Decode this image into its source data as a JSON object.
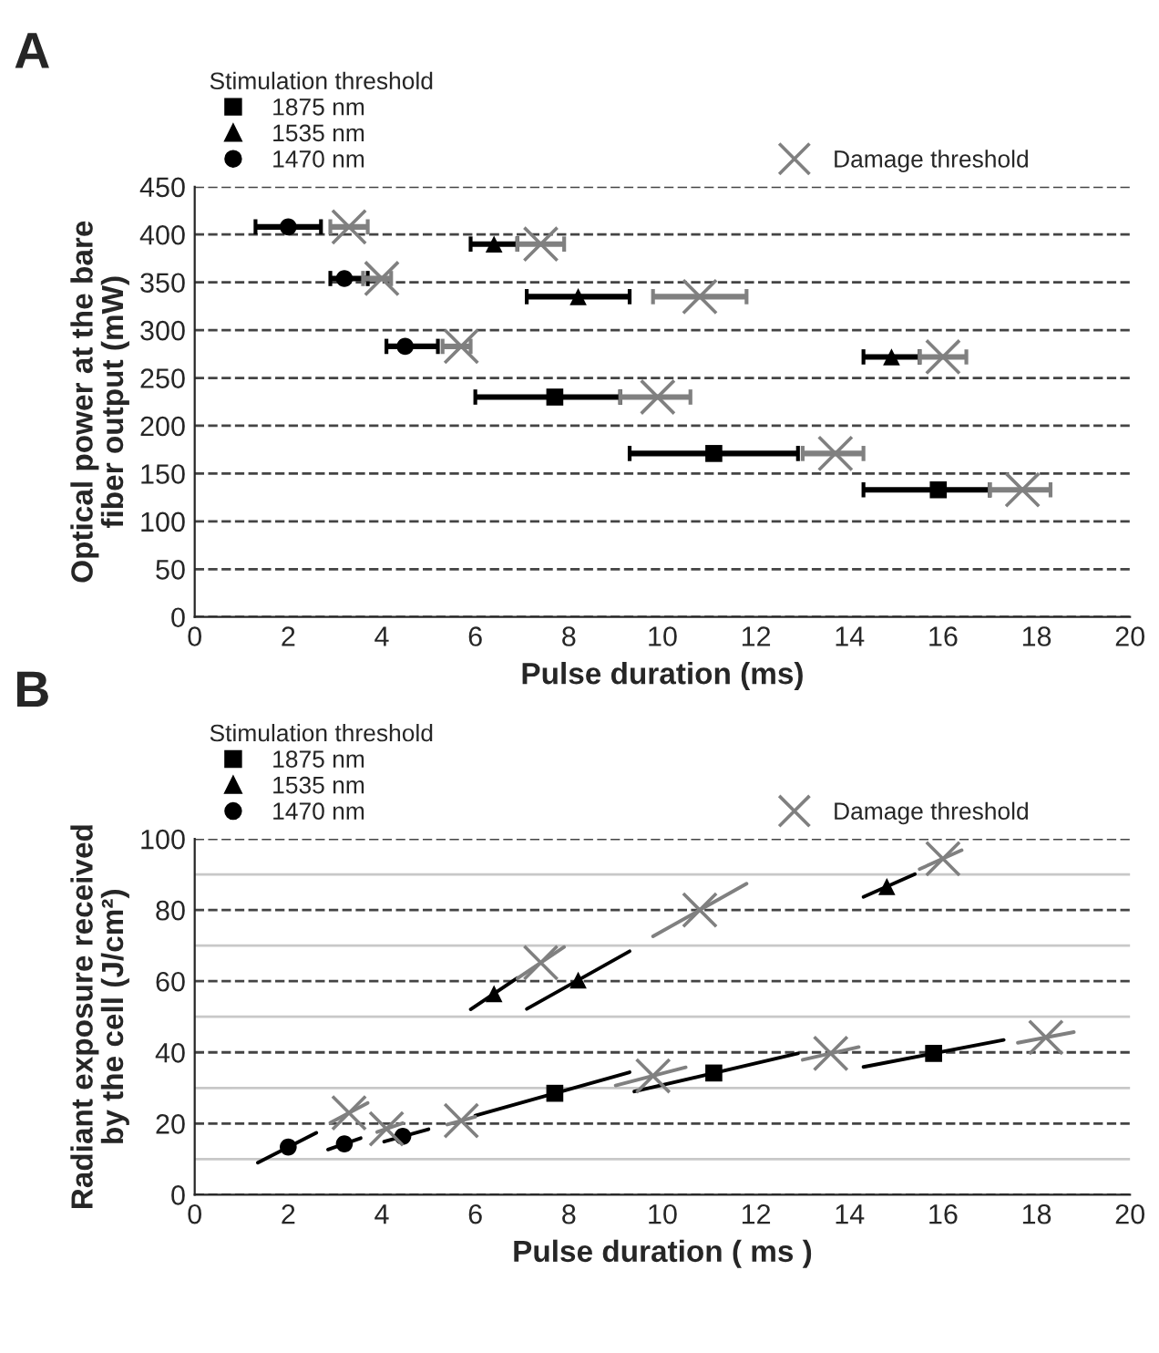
{
  "chart_data": [
    {
      "type": "scatter",
      "annotations": [
        "A"
      ],
      "xlabel": "Pulse duration (ms)",
      "ylabel": "Optical power at the bare\nfiber output (mW)",
      "legend_title": "Stimulation threshold",
      "legend": "top",
      "grid": "y",
      "xlim": [
        0,
        20
      ],
      "xticks": [
        0,
        2,
        4,
        6,
        8,
        10,
        12,
        14,
        16,
        18,
        20
      ],
      "ylim": [
        0,
        450
      ],
      "yticks": [
        0,
        50,
        100,
        150,
        200,
        250,
        300,
        350,
        400,
        450
      ],
      "series": [
        {
          "name": "1875 nm",
          "color": "#000000",
          "marker": "square",
          "x": [
            7.7,
            11.1,
            15.9
          ],
          "values": [
            230,
            171,
            133
          ],
          "xerrors": [
            [
              6.0,
              9.1
            ],
            [
              9.3,
              12.9
            ],
            [
              14.3,
              17.0
            ]
          ]
        },
        {
          "name": "1535 nm",
          "color": "#000000",
          "marker": "triangle",
          "x": [
            6.4,
            8.2,
            14.9
          ],
          "values": [
            390,
            335,
            272
          ],
          "xerrors": [
            [
              5.9,
              6.9
            ],
            [
              7.1,
              9.3
            ],
            [
              14.3,
              15.5
            ]
          ]
        },
        {
          "name": "1470 nm",
          "color": "#000000",
          "marker": "circle",
          "x": [
            2.0,
            3.2,
            4.5
          ],
          "values": [
            408,
            354,
            283
          ],
          "xerrors": [
            [
              1.3,
              2.7
            ],
            [
              2.9,
              3.7
            ],
            [
              4.1,
              5.2
            ]
          ]
        },
        {
          "name": "Damage threshold",
          "color": "#808080",
          "marker": "cross",
          "x": [
            3.3,
            4.0,
            5.7,
            7.4,
            10.8,
            16.0,
            9.9,
            13.7,
            17.7
          ],
          "values": [
            408,
            354,
            283,
            390,
            335,
            272,
            230,
            171,
            133
          ],
          "xerrors": [
            [
              2.9,
              3.7
            ],
            [
              3.6,
              4.2
            ],
            [
              5.3,
              5.9
            ],
            [
              6.9,
              7.9
            ],
            [
              9.8,
              11.8
            ],
            [
              15.5,
              16.5
            ],
            [
              9.1,
              10.6
            ],
            [
              13.0,
              14.3
            ],
            [
              17.0,
              18.3
            ]
          ]
        }
      ]
    },
    {
      "type": "scatter",
      "annotations": [
        "B"
      ],
      "xlabel": "Pulse duration ( ms )",
      "ylabel": "Radiant exposure received\nby the cell (J/cm²)",
      "legend_title": "Stimulation threshold",
      "legend": "top",
      "grid": "y",
      "xlim": [
        0,
        20
      ],
      "xticks": [
        0,
        2,
        4,
        6,
        8,
        10,
        12,
        14,
        16,
        18,
        20
      ],
      "ylim": [
        0,
        100
      ],
      "yticks": [
        0,
        20,
        40,
        60,
        80,
        100
      ],
      "ref_lines": [
        {
          "axis": "y",
          "value": 10,
          "color": "#c8c8c8",
          "line_style": "solid"
        },
        {
          "axis": "y",
          "value": 30,
          "color": "#c8c8c8",
          "line_style": "solid"
        },
        {
          "axis": "y",
          "value": 50,
          "color": "#c8c8c8",
          "line_style": "solid"
        },
        {
          "axis": "y",
          "value": 70,
          "color": "#c8c8c8",
          "line_style": "solid"
        },
        {
          "axis": "y",
          "value": 90,
          "color": "#c8c8c8",
          "line_style": "solid"
        }
      ],
      "series": [
        {
          "name": "1875 nm",
          "color": "#000000",
          "marker": "square",
          "x": [
            7.7,
            11.1,
            15.8
          ],
          "values": [
            28.5,
            34.2,
            39.7
          ]
        },
        {
          "name": "1535 nm",
          "color": "#000000",
          "marker": "triangle",
          "x": [
            6.4,
            8.2,
            14.8
          ],
          "values": [
            56.5,
            60.3,
            86.6
          ]
        },
        {
          "name": "1470 nm",
          "color": "#000000",
          "marker": "circle",
          "x": [
            2.0,
            3.2,
            4.45
          ],
          "values": [
            13.4,
            14.3,
            16.4
          ]
        },
        {
          "name": "Damage threshold",
          "color": "#808080",
          "marker": "cross",
          "x": [
            3.3,
            4.1,
            5.7,
            7.4,
            10.8,
            16.0,
            9.8,
            13.6,
            18.2
          ],
          "values": [
            23.0,
            18.5,
            20.8,
            65.2,
            80.0,
            94.4,
            33.4,
            39.7,
            44.2
          ]
        },
        {
          "type": "line",
          "color": "#000000",
          "x": [
            6.0,
            9.3
          ],
          "values": [
            22.2,
            34.4
          ]
        },
        {
          "type": "line",
          "color": "#000000",
          "x": [
            9.4,
            12.9
          ],
          "values": [
            29.0,
            39.7
          ]
        },
        {
          "type": "line",
          "color": "#000000",
          "x": [
            14.3,
            17.3
          ],
          "values": [
            35.9,
            43.5
          ]
        },
        {
          "type": "line",
          "color": "#000000",
          "x": [
            5.9,
            6.9
          ],
          "values": [
            52.1,
            60.9
          ]
        },
        {
          "type": "line",
          "color": "#000000",
          "x": [
            7.1,
            9.3
          ],
          "values": [
            52.2,
            68.4
          ]
        },
        {
          "type": "line",
          "color": "#000000",
          "x": [
            14.3,
            15.4
          ],
          "values": [
            83.7,
            90.1
          ]
        },
        {
          "type": "line",
          "color": "#000000",
          "x": [
            1.35,
            2.6
          ],
          "values": [
            9.0,
            17.4
          ]
        },
        {
          "type": "line",
          "color": "#000000",
          "x": [
            2.85,
            3.55
          ],
          "values": [
            12.7,
            15.9
          ]
        },
        {
          "type": "line",
          "color": "#000000",
          "x": [
            4.05,
            5.0
          ],
          "values": [
            14.9,
            18.4
          ]
        },
        {
          "type": "line",
          "color": "#808080",
          "x": [
            2.9,
            3.7
          ],
          "values": [
            20.2,
            25.8
          ]
        },
        {
          "type": "line",
          "color": "#808080",
          "x": [
            3.9,
            4.45
          ],
          "values": [
            17.6,
            20.1
          ]
        },
        {
          "type": "line",
          "color": "#808080",
          "x": [
            5.4,
            6.0
          ],
          "values": [
            19.7,
            21.9
          ]
        },
        {
          "type": "line",
          "color": "#808080",
          "x": [
            6.9,
            7.9
          ],
          "values": [
            60.8,
            69.6
          ]
        },
        {
          "type": "line",
          "color": "#808080",
          "x": [
            9.8,
            11.8
          ],
          "values": [
            72.6,
            87.4
          ]
        },
        {
          "type": "line",
          "color": "#808080",
          "x": [
            15.5,
            16.4
          ],
          "values": [
            91.5,
            96.8
          ]
        },
        {
          "type": "line",
          "color": "#808080",
          "x": [
            9.0,
            10.5
          ],
          "values": [
            30.7,
            35.8
          ]
        },
        {
          "type": "line",
          "color": "#808080",
          "x": [
            13.0,
            14.2
          ],
          "values": [
            37.9,
            41.5
          ]
        },
        {
          "type": "line",
          "color": "#808080",
          "x": [
            17.6,
            18.8
          ],
          "values": [
            42.7,
            45.7
          ]
        }
      ]
    }
  ]
}
